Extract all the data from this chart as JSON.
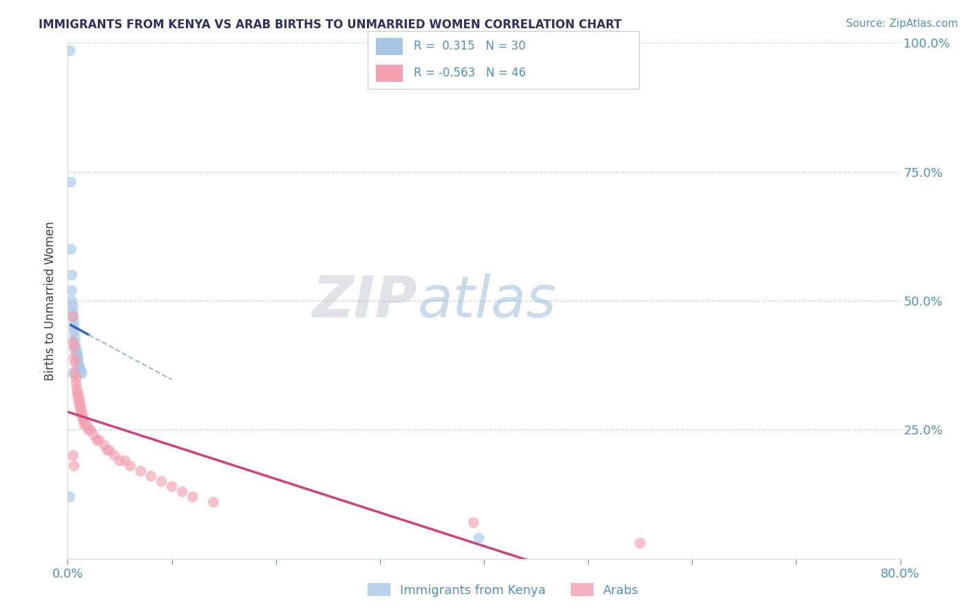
{
  "title": "IMMIGRANTS FROM KENYA VS ARAB BIRTHS TO UNMARRIED WOMEN CORRELATION CHART",
  "source_text": "Source: ZipAtlas.com",
  "ylabel": "Births to Unmarried Women",
  "xlim": [
    0.0,
    0.8
  ],
  "ylim": [
    0.0,
    1.0
  ],
  "blue_R": 0.315,
  "blue_N": 30,
  "pink_R": -0.563,
  "pink_N": 46,
  "blue_color": "#a8c8e8",
  "pink_color": "#f4a0b0",
  "blue_line_color": "#3060c0",
  "pink_line_color": "#d04080",
  "blue_dash_color": "#a0b8d8",
  "title_color": "#303060",
  "axis_label_color": "#404040",
  "tick_color": "#5090c0",
  "grid_color": "#c8dce8",
  "background_color": "#ffffff",
  "blue_points_x": [
    0.002,
    0.005,
    0.005,
    0.005,
    0.006,
    0.007,
    0.007,
    0.008,
    0.008,
    0.009,
    0.009,
    0.009,
    0.01,
    0.01,
    0.01,
    0.011,
    0.011,
    0.012,
    0.012,
    0.013,
    0.013,
    0.014,
    0.015,
    0.016,
    0.018,
    0.02,
    0.007,
    0.007,
    0.395,
    0.002
  ],
  "blue_points_y": [
    0.985,
    0.73,
    0.6,
    0.55,
    0.5,
    0.48,
    0.47,
    0.46,
    0.44,
    0.43,
    0.42,
    0.41,
    0.41,
    0.4,
    0.4,
    0.39,
    0.39,
    0.38,
    0.38,
    0.38,
    0.37,
    0.37,
    0.37,
    0.37,
    0.36,
    0.36,
    0.36,
    0.35,
    0.04,
    0.12
  ],
  "pink_points_x": [
    0.005,
    0.005,
    0.006,
    0.007,
    0.007,
    0.008,
    0.008,
    0.009,
    0.01,
    0.01,
    0.01,
    0.011,
    0.011,
    0.012,
    0.012,
    0.013,
    0.013,
    0.014,
    0.015,
    0.016,
    0.017,
    0.018,
    0.02,
    0.022,
    0.025,
    0.027,
    0.03,
    0.032,
    0.035,
    0.038,
    0.04,
    0.045,
    0.05,
    0.055,
    0.06,
    0.065,
    0.07,
    0.08,
    0.09,
    0.1,
    0.11,
    0.12,
    0.4,
    0.55,
    0.005,
    0.007
  ],
  "pink_points_y": [
    0.47,
    0.42,
    0.4,
    0.38,
    0.36,
    0.35,
    0.34,
    0.33,
    0.33,
    0.32,
    0.31,
    0.31,
    0.3,
    0.3,
    0.29,
    0.29,
    0.28,
    0.28,
    0.28,
    0.27,
    0.27,
    0.27,
    0.26,
    0.26,
    0.25,
    0.25,
    0.24,
    0.24,
    0.23,
    0.23,
    0.22,
    0.21,
    0.2,
    0.19,
    0.19,
    0.18,
    0.17,
    0.16,
    0.15,
    0.14,
    0.13,
    0.12,
    0.08,
    0.04,
    0.2,
    0.18
  ]
}
